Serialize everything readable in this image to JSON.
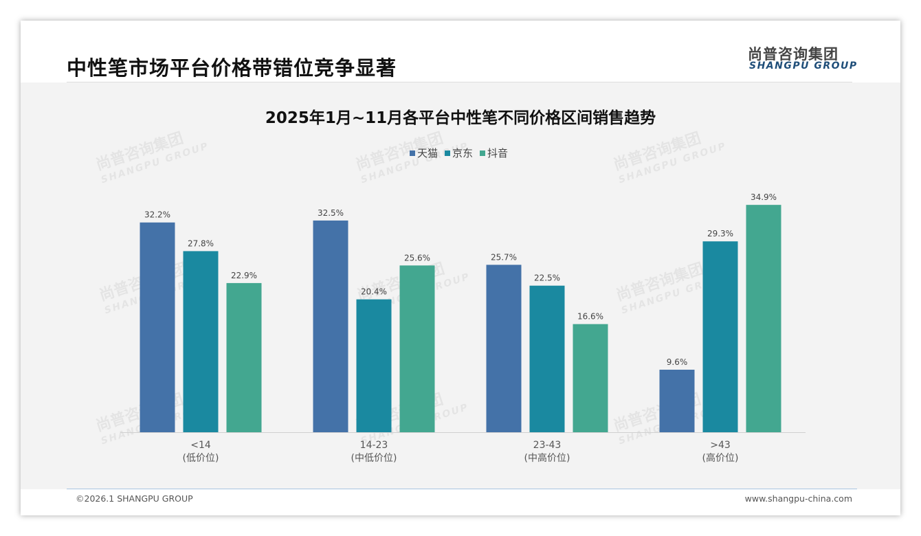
{
  "header": {
    "title": "中性笔市场平台价格带错位竞争显著",
    "logo_cn": "尚普咨询集团",
    "logo_en": "SHANGPU GROUP"
  },
  "footer": {
    "copyright": "©2026.1 SHANGPU GROUP",
    "website": "www.shangpu-china.com"
  },
  "colors": {
    "tmall": "#4472a8",
    "jd": "#1a89a0",
    "douyin": "#43a790"
  },
  "chart_data": {
    "type": "bar",
    "title": "2025年1月~11月各平台中性笔不同价格区间销售趋势",
    "categories": [
      "<14",
      "14-23",
      "23-43",
      ">43"
    ],
    "category_sublabels": [
      "(低价位)",
      "(中低价位)",
      "(中高价位)",
      "(高价位)"
    ],
    "series": [
      {
        "name": "天猫",
        "values": [
          32.2,
          32.5,
          25.7,
          9.6
        ]
      },
      {
        "name": "京东",
        "values": [
          27.8,
          20.4,
          22.5,
          29.3
        ]
      },
      {
        "name": "抖音",
        "values": [
          22.9,
          25.6,
          16.6,
          34.9
        ]
      }
    ],
    "unit": "%",
    "ylim": [
      0,
      35
    ],
    "legend": "top-center",
    "grid": false
  }
}
